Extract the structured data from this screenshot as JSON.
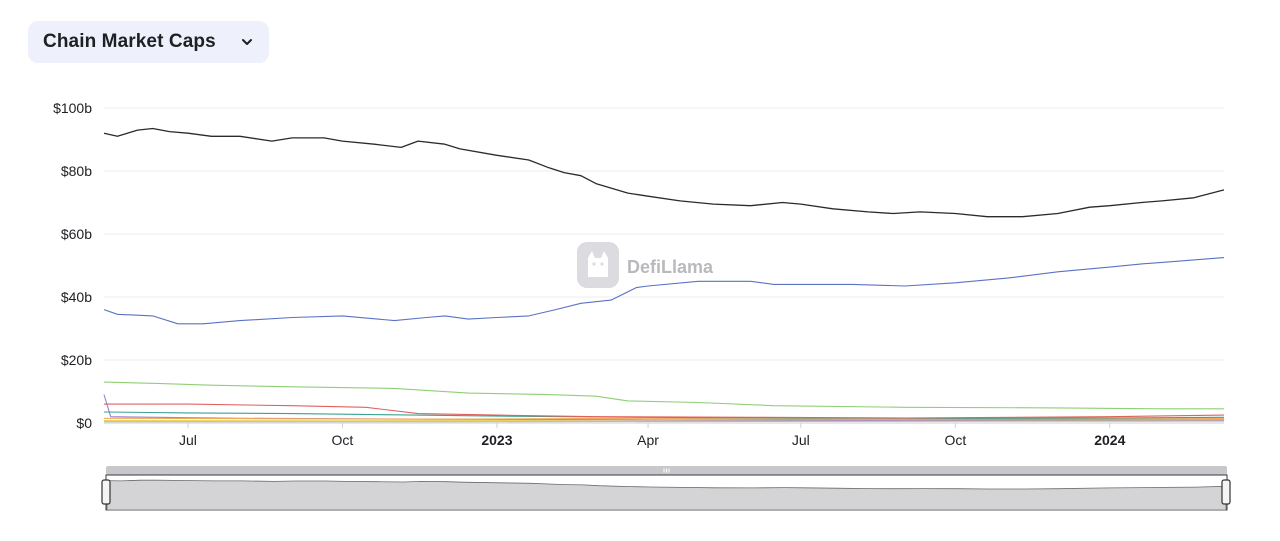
{
  "header": {
    "selector_label": "Chain Market Caps",
    "chevron_icon": "chevron-down-icon"
  },
  "watermark": {
    "text": "DefiLlama",
    "icon": "llama-logo-icon"
  },
  "colors": {
    "total": "#2b2b2b",
    "blue": "#5b72c4",
    "green": "#8fcf76",
    "red": "#e0615d",
    "teal": "#3aa38f",
    "orange": "#f2a95a",
    "gray": "#b8b8c0",
    "purple": "#9b7fd1",
    "yellow": "#e8d45a"
  },
  "chart_data": {
    "type": "line",
    "title": "",
    "xlabel": "",
    "ylabel": "",
    "ylim": [
      0,
      100
    ],
    "y_unit": "b",
    "y_ticks": [
      "$0",
      "$20b",
      "$40b",
      "$60b",
      "$80b",
      "$100b"
    ],
    "x_ticks": [
      {
        "label": "Jul",
        "date": "2022-07-01",
        "bold": false
      },
      {
        "label": "Oct",
        "date": "2022-10-01",
        "bold": false
      },
      {
        "label": "2023",
        "date": "2023-01-01",
        "bold": true
      },
      {
        "label": "Apr",
        "date": "2023-04-01",
        "bold": false
      },
      {
        "label": "Jul",
        "date": "2023-07-01",
        "bold": false
      },
      {
        "label": "Oct",
        "date": "2023-10-01",
        "bold": false
      },
      {
        "label": "2024",
        "date": "2024-01-01",
        "bold": true
      }
    ],
    "x_range": [
      "2022-05-12",
      "2024-03-09"
    ],
    "grid": true,
    "series": [
      {
        "color": "total",
        "points": [
          [
            "2022-05-12",
            92
          ],
          [
            "2022-05-20",
            91
          ],
          [
            "2022-06-01",
            93
          ],
          [
            "2022-06-10",
            93.5
          ],
          [
            "2022-06-20",
            92.5
          ],
          [
            "2022-07-01",
            92
          ],
          [
            "2022-07-15",
            91
          ],
          [
            "2022-08-01",
            91
          ],
          [
            "2022-08-20",
            89.5
          ],
          [
            "2022-09-01",
            90.5
          ],
          [
            "2022-09-20",
            90.5
          ],
          [
            "2022-10-01",
            89.5
          ],
          [
            "2022-10-20",
            88.5
          ],
          [
            "2022-11-05",
            87.5
          ],
          [
            "2022-11-15",
            89.5
          ],
          [
            "2022-12-01",
            88.5
          ],
          [
            "2022-12-10",
            87
          ],
          [
            "2023-01-01",
            85
          ],
          [
            "2023-01-20",
            83.5
          ],
          [
            "2023-02-01",
            81
          ],
          [
            "2023-02-10",
            79.5
          ],
          [
            "2023-02-20",
            78.5
          ],
          [
            "2023-03-01",
            76
          ],
          [
            "2023-03-20",
            73
          ],
          [
            "2023-04-01",
            72
          ],
          [
            "2023-04-20",
            70.5
          ],
          [
            "2023-05-10",
            69.5
          ],
          [
            "2023-06-01",
            69
          ],
          [
            "2023-06-20",
            70
          ],
          [
            "2023-07-01",
            69.5
          ],
          [
            "2023-07-20",
            68
          ],
          [
            "2023-08-10",
            67
          ],
          [
            "2023-08-25",
            66.5
          ],
          [
            "2023-09-10",
            67
          ],
          [
            "2023-10-01",
            66.5
          ],
          [
            "2023-10-20",
            65.5
          ],
          [
            "2023-11-10",
            65.5
          ],
          [
            "2023-12-01",
            66.5
          ],
          [
            "2023-12-20",
            68.5
          ],
          [
            "2024-01-01",
            69
          ],
          [
            "2024-01-20",
            70
          ],
          [
            "2024-02-01",
            70.5
          ],
          [
            "2024-02-20",
            71.5
          ],
          [
            "2024-03-09",
            74
          ]
        ]
      },
      {
        "color": "blue",
        "points": [
          [
            "2022-05-12",
            36
          ],
          [
            "2022-05-20",
            34.5
          ],
          [
            "2022-06-10",
            34
          ],
          [
            "2022-06-25",
            31.5
          ],
          [
            "2022-07-10",
            31.5
          ],
          [
            "2022-08-01",
            32.5
          ],
          [
            "2022-09-01",
            33.5
          ],
          [
            "2022-10-01",
            34
          ],
          [
            "2022-11-01",
            32.5
          ],
          [
            "2022-11-20",
            33.5
          ],
          [
            "2022-12-01",
            34
          ],
          [
            "2022-12-15",
            33
          ],
          [
            "2023-01-01",
            33.5
          ],
          [
            "2023-01-20",
            34
          ],
          [
            "2023-02-05",
            36
          ],
          [
            "2023-02-20",
            38
          ],
          [
            "2023-03-10",
            39
          ],
          [
            "2023-03-25",
            43
          ],
          [
            "2023-04-01",
            43.5
          ],
          [
            "2023-05-01",
            45
          ],
          [
            "2023-06-01",
            45
          ],
          [
            "2023-06-15",
            44
          ],
          [
            "2023-07-01",
            44
          ],
          [
            "2023-08-01",
            44
          ],
          [
            "2023-09-01",
            43.5
          ],
          [
            "2023-10-01",
            44.5
          ],
          [
            "2023-11-01",
            46
          ],
          [
            "2023-12-01",
            48
          ],
          [
            "2024-01-01",
            49.5
          ],
          [
            "2024-01-20",
            50.5
          ],
          [
            "2024-02-01",
            51
          ],
          [
            "2024-03-09",
            52.5
          ]
        ]
      },
      {
        "color": "green",
        "points": [
          [
            "2022-05-12",
            13
          ],
          [
            "2022-06-15",
            12.5
          ],
          [
            "2022-07-15",
            12
          ],
          [
            "2022-09-01",
            11.5
          ],
          [
            "2022-11-01",
            11
          ],
          [
            "2022-12-15",
            9.5
          ],
          [
            "2023-02-01",
            9
          ],
          [
            "2023-03-01",
            8.5
          ],
          [
            "2023-03-20",
            7
          ],
          [
            "2023-05-01",
            6.5
          ],
          [
            "2023-06-15",
            5.5
          ],
          [
            "2023-09-01",
            5
          ],
          [
            "2023-12-01",
            4.8
          ],
          [
            "2024-02-01",
            4.5
          ],
          [
            "2024-03-09",
            4.5
          ]
        ]
      },
      {
        "color": "red",
        "points": [
          [
            "2022-05-12",
            6
          ],
          [
            "2022-07-01",
            6
          ],
          [
            "2022-09-01",
            5.5
          ],
          [
            "2022-10-15",
            5
          ],
          [
            "2022-11-15",
            3
          ],
          [
            "2023-01-01",
            2.5
          ],
          [
            "2023-03-01",
            2
          ],
          [
            "2023-06-01",
            1.8
          ],
          [
            "2023-09-01",
            1.6
          ],
          [
            "2024-01-01",
            2
          ],
          [
            "2024-03-09",
            2.5
          ]
        ]
      },
      {
        "color": "teal",
        "points": [
          [
            "2022-05-12",
            3.5
          ],
          [
            "2022-07-01",
            3.2
          ],
          [
            "2022-09-01",
            3
          ],
          [
            "2022-11-01",
            2.6
          ],
          [
            "2023-01-01",
            2.2
          ],
          [
            "2023-04-01",
            1.8
          ],
          [
            "2023-07-01",
            1.6
          ],
          [
            "2023-10-01",
            1.5
          ],
          [
            "2024-01-01",
            1.6
          ],
          [
            "2024-03-09",
            1.8
          ]
        ]
      },
      {
        "color": "orange",
        "points": [
          [
            "2022-05-12",
            1.5
          ],
          [
            "2022-08-01",
            1.4
          ],
          [
            "2022-12-01",
            1.2
          ],
          [
            "2023-04-01",
            1.5
          ],
          [
            "2023-08-01",
            1.2
          ],
          [
            "2023-12-01",
            1.3
          ],
          [
            "2024-03-09",
            1.4
          ]
        ]
      },
      {
        "color": "purple",
        "points": [
          [
            "2022-05-12",
            9
          ],
          [
            "2022-05-16",
            2
          ],
          [
            "2022-08-01",
            1.5
          ],
          [
            "2022-12-01",
            1.2
          ],
          [
            "2023-04-01",
            1
          ],
          [
            "2023-08-01",
            0.9
          ],
          [
            "2024-03-09",
            1
          ]
        ]
      },
      {
        "color": "yellow",
        "points": [
          [
            "2022-05-12",
            0.8
          ],
          [
            "2022-10-01",
            0.7
          ],
          [
            "2023-03-01",
            0.9
          ],
          [
            "2023-09-01",
            0.8
          ],
          [
            "2024-03-09",
            0.9
          ]
        ]
      },
      {
        "color": "gray",
        "points": [
          [
            "2022-05-12",
            0.4
          ],
          [
            "2022-12-01",
            0.4
          ],
          [
            "2023-06-01",
            0.5
          ],
          [
            "2024-03-09",
            0.6
          ]
        ]
      }
    ],
    "slider": {
      "start_fraction": 0,
      "end_fraction": 1,
      "grip_icon": "grip-icon"
    }
  }
}
